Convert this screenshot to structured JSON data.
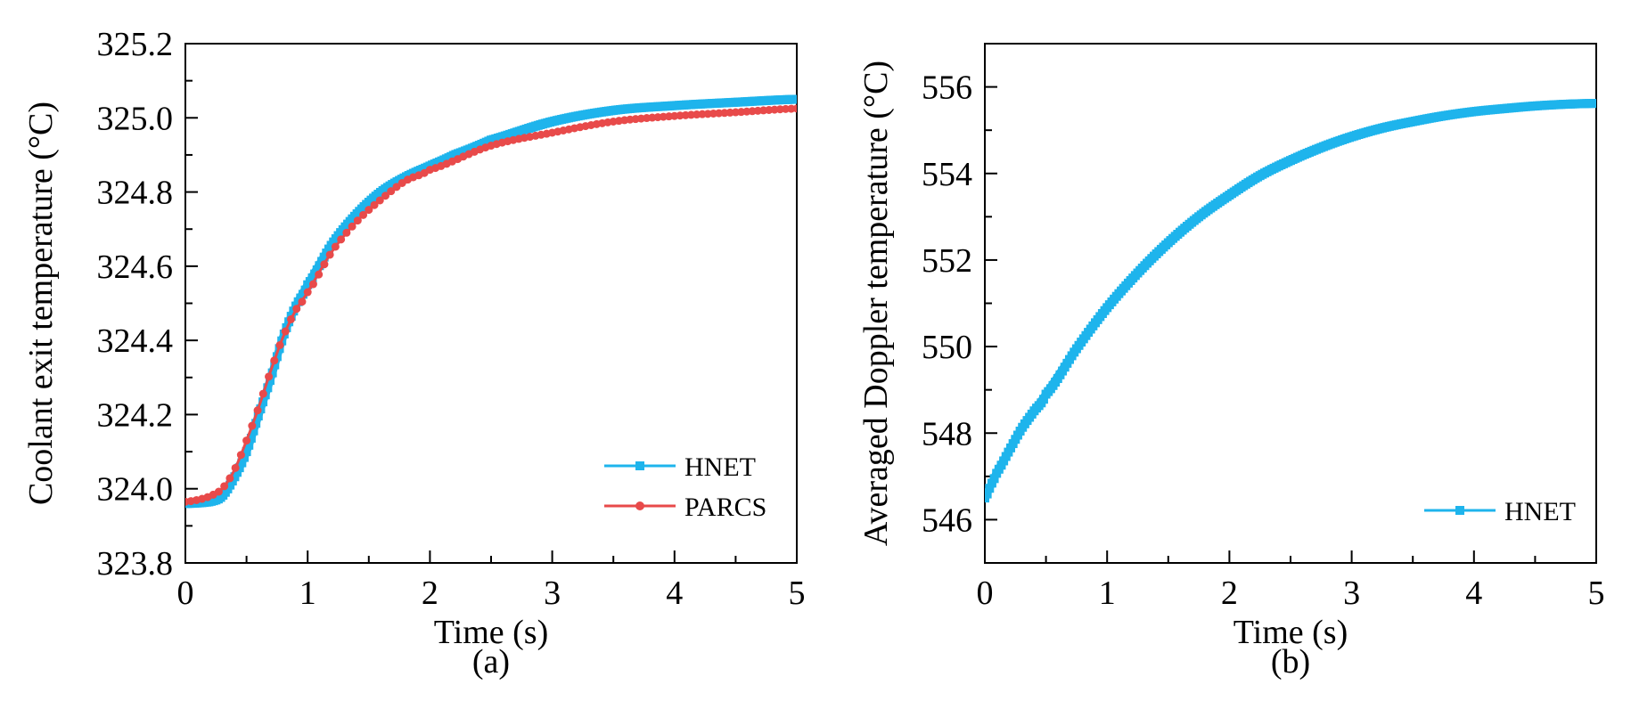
{
  "chart_data": [
    {
      "type": "line",
      "panel_label": "(a)",
      "xlabel": "Time (s)",
      "ylabel": "Coolant exit temperature (°C)",
      "xlim": [
        0,
        5
      ],
      "ylim": [
        323.8,
        325.2
      ],
      "xticks": [
        "0",
        "1",
        "2",
        "3",
        "4",
        "5"
      ],
      "yticks": [
        "323.8",
        "324.0",
        "324.2",
        "324.4",
        "324.6",
        "324.8",
        "325.0",
        "325.2"
      ],
      "legend_position": "bottom-right",
      "series": [
        {
          "name": "HNET",
          "color": "#1eb4ec",
          "marker": "square",
          "x": [
            0,
            0.2,
            0.3,
            0.4,
            0.5,
            0.6,
            0.7,
            0.8,
            0.9,
            1.0,
            1.2,
            1.4,
            1.6,
            1.8,
            2.0,
            2.2,
            2.5,
            3.0,
            3.5,
            4.0,
            4.5,
            5.0
          ],
          "y": [
            323.96,
            323.965,
            323.98,
            324.03,
            324.1,
            324.2,
            324.3,
            324.41,
            324.49,
            324.55,
            324.66,
            324.74,
            324.8,
            324.84,
            324.87,
            324.9,
            324.94,
            324.99,
            325.02,
            325.033,
            325.042,
            325.05
          ]
        },
        {
          "name": "PARCS",
          "color": "#e84a4a",
          "marker": "circle",
          "x": [
            0,
            0.1,
            0.2,
            0.3,
            0.4,
            0.5,
            0.6,
            0.7,
            0.8,
            0.9,
            1.0,
            1.2,
            1.4,
            1.6,
            1.8,
            2.0,
            2.5,
            3.0,
            3.5,
            4.0,
            4.5,
            5.0
          ],
          "y": [
            323.965,
            323.97,
            323.98,
            324.0,
            324.05,
            324.13,
            324.22,
            324.32,
            324.41,
            324.48,
            324.53,
            324.64,
            324.72,
            324.78,
            324.83,
            324.86,
            324.925,
            324.96,
            324.99,
            325.005,
            325.015,
            325.025
          ]
        }
      ]
    },
    {
      "type": "line",
      "panel_label": "(b)",
      "xlabel": "Time (s)",
      "ylabel": "Averaged Doppler temperature (°C)",
      "xlim": [
        0,
        5
      ],
      "ylim": [
        545,
        557
      ],
      "xticks": [
        "0",
        "1",
        "2",
        "3",
        "4",
        "5"
      ],
      "yticks": [
        "546",
        "548",
        "550",
        "552",
        "554",
        "556"
      ],
      "legend_position": "bottom-right",
      "series": [
        {
          "name": "HNET",
          "color": "#1eb4ec",
          "marker": "square",
          "x": [
            0,
            0.05,
            0.1,
            0.2,
            0.3,
            0.4,
            0.5,
            0.75,
            1.0,
            1.25,
            1.5,
            1.75,
            2.0,
            2.25,
            2.5,
            2.75,
            3.0,
            3.25,
            3.5,
            3.75,
            4.0,
            4.25,
            4.5,
            4.75,
            5.0
          ],
          "y": [
            546.5,
            546.8,
            547.1,
            547.6,
            548.1,
            548.5,
            548.9,
            549.95,
            550.9,
            551.7,
            552.4,
            553.0,
            553.5,
            553.95,
            554.3,
            554.6,
            554.85,
            555.05,
            555.2,
            555.33,
            555.43,
            555.5,
            555.56,
            555.6,
            555.62
          ]
        }
      ]
    }
  ]
}
